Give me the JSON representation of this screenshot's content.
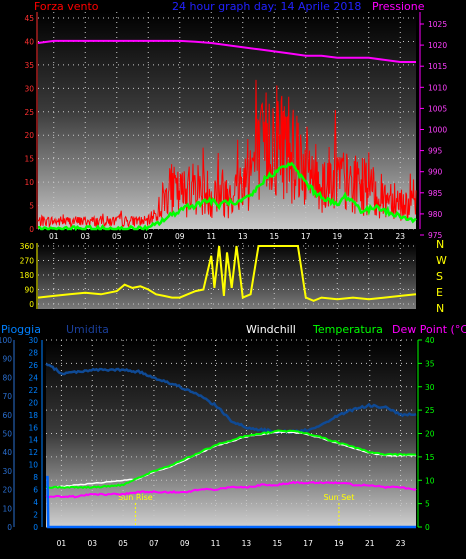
{
  "colors": {
    "background": "#000000",
    "wind": "#ff0000",
    "gust_avg": "#00ff00",
    "pressure": "#ff00ff",
    "direction": "#ffff00",
    "rain": "#0066ff",
    "humidity": "#0a3a7a",
    "temperature": "#00ff00",
    "dew_point": "#ff00ff",
    "windchill": "#ffffff",
    "rain_axis": "#0080ff",
    "temp_axis": "#00ff00",
    "sun_marker": "#ffff00",
    "grid_dot": "#c8c8c8",
    "tick_label": "#ffffff"
  },
  "chart_data": [
    {
      "type": "line",
      "title": "24 hour graph day: 14 Aprile 2018",
      "ylabel_left": "Forza vento",
      "ylabel_right": "Pressione",
      "x_ticks": [
        "01",
        "03",
        "05",
        "07",
        "09",
        "11",
        "13",
        "15",
        "17",
        "19",
        "21",
        "23"
      ],
      "x_range": [
        0,
        24
      ],
      "y_left_ticks": [
        "0",
        "5",
        "10",
        "15",
        "20",
        "25",
        "30",
        "35",
        "40",
        "45"
      ],
      "y_left_range": [
        0,
        45
      ],
      "y_right_ticks": [
        "975",
        "980",
        "985",
        "990",
        "995",
        "1000",
        "1005",
        "1010",
        "1015",
        "1020",
        "1025"
      ],
      "y_right_range": [
        975,
        1025
      ],
      "series": [
        {
          "kind": "wind_speed",
          "style": "noisy",
          "x": [
            0,
            1,
            2,
            3,
            4,
            5,
            6,
            7,
            7.5,
            8,
            8.5,
            9,
            9.5,
            10,
            10.5,
            11,
            11.5,
            12,
            12.5,
            13,
            13.5,
            14,
            14.5,
            15,
            15.5,
            16,
            16.5,
            17,
            17.5,
            18,
            18.5,
            19,
            19.5,
            20,
            20.5,
            21,
            21.5,
            22,
            22.5,
            23,
            23.5,
            24
          ],
          "values": [
            2,
            2,
            2,
            2,
            2,
            2,
            2,
            2,
            4,
            8,
            10,
            9,
            10,
            11,
            10,
            9,
            10,
            9,
            10,
            12,
            16,
            18,
            22,
            24,
            23,
            22,
            20,
            16,
            14,
            12,
            13,
            14,
            12,
            11,
            12,
            10,
            9,
            8,
            9,
            7,
            6,
            6
          ]
        },
        {
          "kind": "wind_average",
          "x": [
            0,
            7,
            7.5,
            8,
            8.5,
            9,
            9.5,
            10,
            10.5,
            11,
            11.5,
            12,
            12.5,
            13,
            13.5,
            14,
            14.5,
            15,
            15.5,
            16,
            16.5,
            17,
            17.5,
            18,
            18.5,
            19,
            19.5,
            20,
            20.5,
            21,
            21.5,
            22,
            22.5,
            23,
            23.5,
            24
          ],
          "values": [
            0,
            0,
            1,
            2,
            3,
            4,
            5,
            5,
            6,
            6,
            5,
            6,
            5,
            6,
            7,
            9,
            11,
            12,
            13,
            14,
            12,
            10,
            8,
            7,
            6,
            5,
            7,
            6,
            4,
            4,
            5,
            4,
            3,
            3,
            2,
            2
          ]
        },
        {
          "kind": "pressure",
          "axis": "right",
          "x": [
            0,
            1,
            2,
            3,
            4,
            5,
            6,
            7,
            8,
            9,
            10,
            11,
            12,
            13,
            14,
            15,
            16,
            17,
            18,
            19,
            20,
            21,
            22,
            23,
            24
          ],
          "values": [
            1020.5,
            1021,
            1021,
            1021,
            1021,
            1021,
            1021,
            1021,
            1021,
            1021,
            1020.8,
            1020.5,
            1020,
            1019.5,
            1019,
            1018.5,
            1018,
            1017.5,
            1017.5,
            1017,
            1017,
            1017,
            1016.5,
            1016,
            1016
          ]
        }
      ]
    },
    {
      "type": "line",
      "title": "",
      "y_ticks": [
        "0",
        "90",
        "180",
        "270",
        "360"
      ],
      "y_range": [
        0,
        360
      ],
      "right_labels": [
        "N",
        "W",
        "S",
        "E",
        "N"
      ],
      "x_range": [
        0,
        24
      ],
      "series": [
        {
          "kind": "wind_direction",
          "x": [
            0,
            1,
            2,
            3,
            4,
            5,
            5.5,
            6,
            6.5,
            7,
            7.5,
            8,
            8.5,
            9,
            9.5,
            10,
            10.5,
            11,
            11.2,
            11.5,
            11.8,
            12,
            12.3,
            12.6,
            13,
            13.5,
            14,
            14.5,
            15,
            15.5,
            16,
            16.5,
            17,
            17.5,
            18,
            19,
            20,
            21,
            22,
            23,
            24
          ],
          "values": [
            40,
            50,
            60,
            70,
            60,
            80,
            120,
            100,
            110,
            90,
            60,
            50,
            40,
            40,
            60,
            80,
            90,
            300,
            100,
            360,
            50,
            320,
            100,
            360,
            40,
            60,
            360,
            360,
            360,
            360,
            360,
            360,
            40,
            20,
            40,
            30,
            40,
            30,
            40,
            50,
            60
          ]
        }
      ]
    },
    {
      "type": "line",
      "title": "",
      "legend": [
        "Pioggia",
        "Umidita",
        "Windchill",
        "Temperatura",
        "Dew Point (°C)"
      ],
      "x_ticks": [
        "01",
        "03",
        "05",
        "07",
        "09",
        "11",
        "13",
        "15",
        "17",
        "19",
        "21",
        "23"
      ],
      "x_range": [
        0,
        24
      ],
      "y_far_left_ticks": [
        "0",
        "10",
        "20",
        "30",
        "40",
        "50",
        "60",
        "70",
        "80",
        "90",
        "100"
      ],
      "y_far_left_range": [
        0,
        100
      ],
      "y_left_ticks": [
        "0",
        "2",
        "4",
        "6",
        "8",
        "10",
        "12",
        "14",
        "16",
        "18",
        "20",
        "22",
        "24",
        "26",
        "28",
        "30"
      ],
      "y_left_range": [
        0,
        30
      ],
      "y_right_ticks": [
        "0",
        "5",
        "10",
        "15",
        "20",
        "25",
        "30",
        "35",
        "40"
      ],
      "y_right_range": [
        0,
        40
      ],
      "annotations": [
        {
          "label": "Sun Rise",
          "x": 5.8
        },
        {
          "label": "Sun Set",
          "x": 19.0
        }
      ],
      "series": [
        {
          "kind": "humidity",
          "axis": "far_left",
          "x": [
            0,
            0.5,
            1,
            2,
            3,
            4,
            5,
            6,
            7,
            8,
            9,
            10,
            11,
            12,
            13,
            14,
            15,
            16,
            17,
            18,
            19,
            20,
            21,
            22,
            23,
            24
          ],
          "values": [
            87,
            85,
            82,
            83,
            84,
            84,
            84,
            83,
            80,
            77,
            74,
            70,
            65,
            57,
            53,
            52,
            51,
            51,
            52,
            55,
            60,
            63,
            65,
            64,
            60,
            60
          ]
        },
        {
          "kind": "temperature",
          "axis": "right",
          "x": [
            0,
            1,
            2,
            3,
            4,
            5,
            6,
            7,
            8,
            9,
            10,
            11,
            12,
            13,
            14,
            15,
            16,
            17,
            18,
            19,
            20,
            21,
            22,
            23,
            24
          ],
          "values": [
            8.5,
            8.5,
            8.5,
            8.5,
            8.7,
            9,
            10.5,
            12,
            13,
            14.5,
            16,
            17.5,
            18.5,
            19.5,
            20,
            20.5,
            20.5,
            20,
            19,
            18,
            17,
            16,
            15.5,
            15.5,
            15.5
          ]
        },
        {
          "kind": "windchill",
          "axis": "right",
          "x": [
            0,
            6,
            7,
            8,
            9,
            10,
            11,
            12,
            13,
            14,
            15,
            16,
            17,
            18,
            19,
            20,
            21,
            22,
            23,
            24
          ],
          "values": [
            8.3,
            10.3,
            11.8,
            12.8,
            14.3,
            15.8,
            17.3,
            18.3,
            19.3,
            19.8,
            20.3,
            20.3,
            19.8,
            18.8,
            17.8,
            16.8,
            15.8,
            15.3,
            15.3,
            15.3
          ]
        },
        {
          "kind": "dew_point",
          "axis": "right",
          "x": [
            0,
            1,
            2,
            3,
            4,
            5,
            6,
            7,
            8,
            9,
            10,
            11,
            12,
            13,
            14,
            15,
            16,
            17,
            18,
            19,
            20,
            21,
            22,
            23,
            24
          ],
          "values": [
            6.5,
            6.5,
            6.5,
            7,
            7,
            7,
            7.5,
            7.5,
            7.5,
            7.5,
            8,
            8,
            8.5,
            8.5,
            9,
            9,
            9.5,
            9.5,
            9.5,
            9.5,
            9,
            9,
            8.5,
            8.5,
            8
          ]
        },
        {
          "kind": "rain",
          "axis": "left",
          "x": [
            0,
            0.1,
            0.15,
            24
          ],
          "values": [
            8,
            8,
            0,
            0
          ]
        }
      ]
    }
  ]
}
